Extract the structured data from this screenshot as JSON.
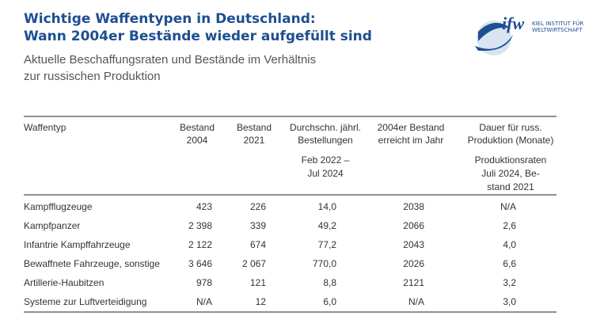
{
  "header": {
    "title": [
      "Wichtige Waffentypen in Deutschland:",
      "Wann 2004er Bestände wieder aufgefüllt sind"
    ],
    "subtitle": [
      "Aktuelle Beschaffungsraten und Bestände im Verhältnis",
      "zur russischen Produktion"
    ],
    "logo": {
      "mark": "ifw",
      "text": [
        "KIEL INSTITUT FÜR",
        "WELTWIRTSCHAFT"
      ]
    }
  },
  "table": {
    "columns": [
      [
        "Waffentyp"
      ],
      [
        "Bestand",
        "2004"
      ],
      [
        "Bestand",
        "2021"
      ],
      [
        "Durchschn. jährl.",
        "Bestellungen"
      ],
      [
        "2004er Bestand",
        "erreicht im Jahr"
      ],
      [
        "Dauer für russ.",
        "Produktion (Monate)"
      ]
    ],
    "subheader": [
      [],
      [],
      [],
      [
        "Feb 2022 –",
        "Jul 2024"
      ],
      [],
      [
        "Produktionsraten",
        "Juli 2024, Be-",
        "stand 2021"
      ]
    ],
    "rows": [
      [
        "Kampfflugzeuge",
        "423",
        "226",
        "14,0",
        "2038",
        "N/A"
      ],
      [
        "Kampfpanzer",
        "2 398",
        "339",
        "49,2",
        "2066",
        "2,6"
      ],
      [
        "Infantrie Kampffahrzeuge",
        "2 122",
        "674",
        "77,2",
        "2043",
        "4,0"
      ],
      [
        "Bewaffnete Fahrzeuge, sonstige",
        "3 646",
        "2 067",
        "770,0",
        "2026",
        "6,6"
      ],
      [
        "Artillerie-Haubitzen",
        "978",
        "121",
        "8,8",
        "2121",
        "3,2"
      ],
      [
        "Systeme zur Luftverteidigung",
        "N/A",
        "12",
        "6,0",
        "N/A",
        "3,0"
      ]
    ]
  }
}
